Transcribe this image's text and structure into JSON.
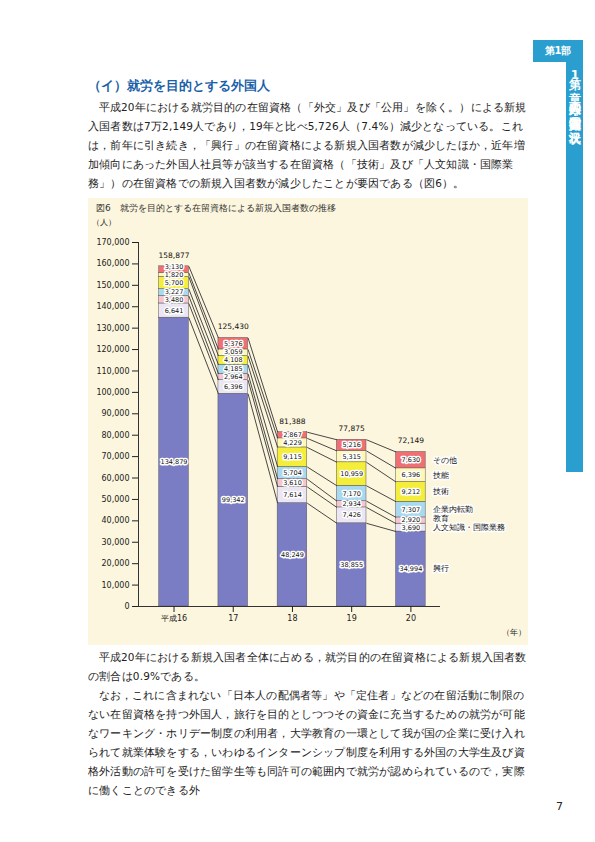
{
  "page": {
    "side_tab": {
      "part": "第1部",
      "chapter": "第1章　外国人の入国・在留等の状況"
    },
    "heading": "（イ）就労を目的とする外国人",
    "paragraphs_before": [
      "平成20年における就労目的の在留資格（「外交」及び「公用」を除く。）による新規入国者数は7万2,149人であり，19年と比べ5,726人（7.4%）減少となっている。これは，前年に引き続き，「興行」の在留資格による新規入国者数が減少したほか，近年増加傾向にあった外国人社員等が該当する在留資格（「技術」及び「人文知識・国際業務」）の在留資格での新規入国者数が減少したことが要因である（図6）。"
    ],
    "paragraphs_after": [
      "平成20年における新規入国者全体に占める，就労目的の在留資格による新規入国者数の割合は0.9%である。",
      "なお，これに含まれない「日本人の配偶者等」や「定住者」などの在留活動に制限のない在留資格を持つ外国人，旅行を目的としつつその資金に充当するための就労が可能なワーキング・ホリデー制度の利用者，大学教育の一環として我が国の企業に受け入れられて就業体験をする，いわゆるインターンシップ制度を利用する外国の大学生及び資格外活動の許可を受けた留学生等も同許可の範囲内で就労が認められているので，実際に働くことのできる外"
    ],
    "page_number": "7"
  },
  "chart_data": {
    "type": "bar",
    "stacked": true,
    "data_labels": true,
    "legend": "right",
    "title": "図6　就労を目的とする在留資格による新規入国者数の推移",
    "x_label": "（年）",
    "y_label": "（人）",
    "categories": [
      "平成16",
      "17",
      "18",
      "19",
      "20"
    ],
    "series": [
      {
        "name": "興行",
        "color": "#7b7dc4",
        "values": [
          134879,
          99342,
          48249,
          38855,
          34994
        ],
        "value_labels": [
          "134,879",
          "99,342",
          "48,249",
          "38,855",
          "34,994"
        ]
      },
      {
        "name": "人文知識・国際業務",
        "color": "#ece6f4",
        "values": [
          6641,
          6396,
          7614,
          7426,
          3690
        ],
        "value_labels": [
          "6,641",
          "6,396",
          "7,614",
          "7,426",
          "3,690"
        ]
      },
      {
        "name": "教育",
        "color": "#f6c6cf",
        "values": [
          3480,
          2964,
          3610,
          2934,
          2920
        ],
        "value_labels": [
          "3,480",
          "2,964",
          "3,610",
          "2,934",
          "2,920"
        ]
      },
      {
        "name": "企業内転勤",
        "color": "#a9d9f0",
        "values": [
          3227,
          4185,
          5704,
          7170,
          7307
        ],
        "value_labels": [
          "3,227",
          "4,185",
          "5,704",
          "7,170",
          "7,307"
        ]
      },
      {
        "name": "技術",
        "color": "#f4ee3a",
        "values": [
          5700,
          4108,
          9115,
          10959,
          9212
        ],
        "value_labels": [
          "5,700",
          "4,108",
          "9,115",
          "10,959",
          "9,212"
        ]
      },
      {
        "name": "技能",
        "color": "#fff7b8",
        "values": [
          1820,
          3059,
          4229,
          5315,
          6396
        ],
        "value_labels": [
          "1,820",
          "3,059",
          "4,229",
          "5,315",
          "6,396"
        ]
      },
      {
        "name": "その他",
        "color": "#ef6f73",
        "values": [
          3130,
          5376,
          2867,
          5216,
          7630
        ],
        "value_labels": [
          "3,130",
          "5,376",
          "2,867",
          "5,216",
          "7,630"
        ]
      }
    ],
    "totals": [
      158877,
      125430,
      81388,
      77875,
      72149
    ],
    "total_labels": [
      "158,877",
      "125,430",
      "81,388",
      "77,875",
      "72,149"
    ],
    "ylim": [
      0,
      170000
    ],
    "yticks": [
      0,
      {
        "value": 10000,
        "label": "10,000"
      },
      {
        "value": 20000,
        "label": "20,000"
      },
      {
        "value": 30000,
        "label": "30,000"
      },
      {
        "value": 40000,
        "label": "40,000"
      },
      {
        "value": 50000,
        "label": "50,000"
      },
      {
        "value": 60000,
        "label": "60,000"
      },
      {
        "value": 70000,
        "label": "70,000"
      },
      {
        "value": 80000,
        "label": "80,000"
      },
      {
        "value": 90000,
        "label": "90,000"
      },
      {
        "value": 100000,
        "label": "100,000"
      },
      {
        "value": 110000,
        "label": "110,000"
      },
      {
        "value": 120000,
        "label": "120,000"
      },
      {
        "value": 130000,
        "label": "130,000"
      },
      {
        "value": 140000,
        "label": "140,000"
      },
      {
        "value": 150000,
        "label": "150,000"
      },
      {
        "value": 160000,
        "label": "160,000"
      },
      {
        "value": 170000,
        "label": "170,000"
      }
    ]
  }
}
